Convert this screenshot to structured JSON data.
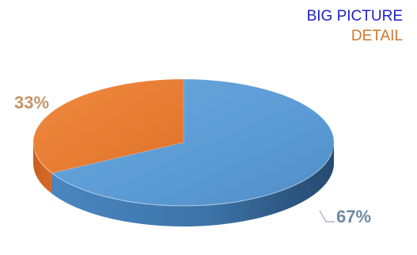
{
  "chart_data": {
    "type": "pie",
    "style": "3d",
    "slices": [
      {
        "label": "BIG PICTURE",
        "value": 67,
        "data_label": "67%",
        "color": "#5B9BD5"
      },
      {
        "label": "DETAIL",
        "value": 33,
        "data_label": "33%",
        "color": "#ED7D31"
      }
    ],
    "legend": {
      "position": "top-right",
      "items": [
        {
          "label": "BIG PICTURE",
          "color": "#1F1FC8"
        },
        {
          "label": "DETAIL",
          "color": "#D1762E"
        }
      ]
    },
    "data_label_colors": {
      "BIG PICTURE": "#6F88A3",
      "DETAIL": "#C4946A"
    }
  }
}
